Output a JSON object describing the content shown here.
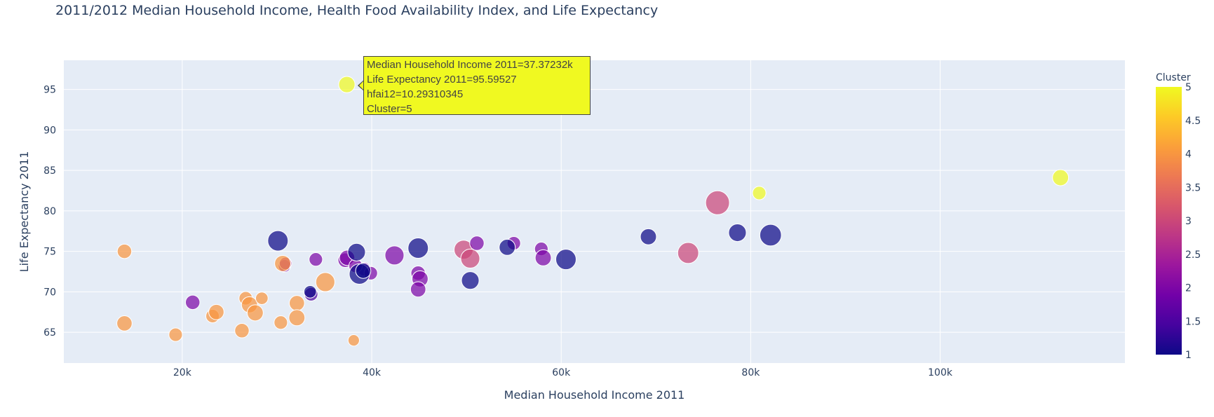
{
  "chart_data": {
    "type": "scatter",
    "title": "2011/2012 Median Household Income, Health Food Availability Index, and Life Expectancy",
    "xlabel": "Median Household Income 2011",
    "ylabel": "Life Expectancy 2011",
    "x_ticks": [
      {
        "value": 20000,
        "label": "20k"
      },
      {
        "value": 40000,
        "label": "40k"
      },
      {
        "value": 60000,
        "label": "60k"
      },
      {
        "value": 80000,
        "label": "80k"
      },
      {
        "value": 100000,
        "label": "100k"
      }
    ],
    "y_ticks": [
      {
        "value": 65,
        "label": "65"
      },
      {
        "value": 70,
        "label": "70"
      },
      {
        "value": 75,
        "label": "75"
      },
      {
        "value": 80,
        "label": "80"
      },
      {
        "value": 85,
        "label": "85"
      },
      {
        "value": 90,
        "label": "90"
      },
      {
        "value": 95,
        "label": "95"
      }
    ],
    "xlim": [
      7500,
      119500
    ],
    "ylim": [
      61.2,
      98.6
    ],
    "grid": true,
    "size_field": "hfai12",
    "color_field": "Cluster",
    "colorbar": {
      "title": "Cluster",
      "range": [
        1,
        5
      ],
      "ticks": [
        "1",
        "1.5",
        "2",
        "2.5",
        "3",
        "3.5",
        "4",
        "4.5",
        "5"
      ],
      "colors": [
        "#0d0887",
        "#46039f",
        "#7201a8",
        "#9c179e",
        "#bd3786",
        "#d8576b",
        "#ed7953",
        "#fb9f3a",
        "#fdca26",
        "#f0f921"
      ]
    },
    "points": [
      {
        "x": 37372,
        "y": 95.6,
        "size": 10.3,
        "cluster": 5
      },
      {
        "x": 112700,
        "y": 84.1,
        "size": 10.0,
        "cluster": 5
      },
      {
        "x": 80900,
        "y": 82.2,
        "size": 7.0,
        "cluster": 5
      },
      {
        "x": 76500,
        "y": 81.0,
        "size": 22.0,
        "cluster": 3
      },
      {
        "x": 73400,
        "y": 74.8,
        "size": 17.0,
        "cluster": 3
      },
      {
        "x": 49700,
        "y": 75.2,
        "size": 14.0,
        "cluster": 3
      },
      {
        "x": 50400,
        "y": 74.1,
        "size": 14.0,
        "cluster": 3
      },
      {
        "x": 51100,
        "y": 76.0,
        "size": 8.0,
        "cluster": 2
      },
      {
        "x": 55000,
        "y": 76.0,
        "size": 7.0,
        "cluster": 2
      },
      {
        "x": 57900,
        "y": 75.3,
        "size": 7.0,
        "cluster": 2
      },
      {
        "x": 58100,
        "y": 74.2,
        "size": 10.0,
        "cluster": 2
      },
      {
        "x": 42400,
        "y": 74.5,
        "size": 14.0,
        "cluster": 2
      },
      {
        "x": 44900,
        "y": 72.3,
        "size": 8.0,
        "cluster": 2
      },
      {
        "x": 45100,
        "y": 71.6,
        "size": 10.0,
        "cluster": 2
      },
      {
        "x": 44900,
        "y": 70.3,
        "size": 9.0,
        "cluster": 2
      },
      {
        "x": 34100,
        "y": 74.0,
        "size": 7.0,
        "cluster": 2
      },
      {
        "x": 37200,
        "y": 73.9,
        "size": 8.0,
        "cluster": 2
      },
      {
        "x": 37400,
        "y": 74.2,
        "size": 9.0,
        "cluster": 2
      },
      {
        "x": 39200,
        "y": 72.8,
        "size": 7.0,
        "cluster": 2
      },
      {
        "x": 39900,
        "y": 72.3,
        "size": 7.0,
        "cluster": 2
      },
      {
        "x": 38300,
        "y": 73.2,
        "size": 7.0,
        "cluster": 2
      },
      {
        "x": 30800,
        "y": 73.2,
        "size": 6.0,
        "cluster": 2
      },
      {
        "x": 30900,
        "y": 73.5,
        "size": 6.0,
        "cluster": 2.5
      },
      {
        "x": 21100,
        "y": 68.7,
        "size": 8.0,
        "cluster": 2
      },
      {
        "x": 33600,
        "y": 69.7,
        "size": 7.0,
        "cluster": 1.5
      },
      {
        "x": 33500,
        "y": 70.0,
        "size": 6.0,
        "cluster": 1
      },
      {
        "x": 30100,
        "y": 76.3,
        "size": 16.0,
        "cluster": 1
      },
      {
        "x": 38400,
        "y": 74.9,
        "size": 12.0,
        "cluster": 1
      },
      {
        "x": 38700,
        "y": 72.2,
        "size": 16.0,
        "cluster": 1
      },
      {
        "x": 39100,
        "y": 72.6,
        "size": 9.0,
        "cluster": 1
      },
      {
        "x": 44900,
        "y": 75.4,
        "size": 16.0,
        "cluster": 1
      },
      {
        "x": 50400,
        "y": 71.4,
        "size": 12.0,
        "cluster": 1
      },
      {
        "x": 54300,
        "y": 75.5,
        "size": 10.0,
        "cluster": 1
      },
      {
        "x": 60500,
        "y": 74.0,
        "size": 16.0,
        "cluster": 1
      },
      {
        "x": 69200,
        "y": 76.8,
        "size": 10.0,
        "cluster": 1
      },
      {
        "x": 78600,
        "y": 77.3,
        "size": 12.0,
        "cluster": 1
      },
      {
        "x": 82100,
        "y": 77.0,
        "size": 18.0,
        "cluster": 1
      },
      {
        "x": 13900,
        "y": 75.0,
        "size": 8.0,
        "cluster": 4
      },
      {
        "x": 13900,
        "y": 66.1,
        "size": 9.0,
        "cluster": 4
      },
      {
        "x": 19300,
        "y": 64.7,
        "size": 7.0,
        "cluster": 4
      },
      {
        "x": 23200,
        "y": 67.0,
        "size": 7.0,
        "cluster": 4
      },
      {
        "x": 23600,
        "y": 67.5,
        "size": 9.0,
        "cluster": 4
      },
      {
        "x": 26300,
        "y": 65.2,
        "size": 8.0,
        "cluster": 4
      },
      {
        "x": 26700,
        "y": 69.2,
        "size": 7.0,
        "cluster": 4
      },
      {
        "x": 27100,
        "y": 68.4,
        "size": 10.0,
        "cluster": 4
      },
      {
        "x": 27700,
        "y": 67.4,
        "size": 10.0,
        "cluster": 4
      },
      {
        "x": 28400,
        "y": 69.2,
        "size": 6.0,
        "cluster": 4
      },
      {
        "x": 30400,
        "y": 66.2,
        "size": 7.0,
        "cluster": 4
      },
      {
        "x": 30600,
        "y": 73.5,
        "size": 10.0,
        "cluster": 4
      },
      {
        "x": 32100,
        "y": 68.6,
        "size": 9.0,
        "cluster": 4
      },
      {
        "x": 32100,
        "y": 66.8,
        "size": 10.0,
        "cluster": 4
      },
      {
        "x": 35100,
        "y": 71.2,
        "size": 14.0,
        "cluster": 4
      },
      {
        "x": 38100,
        "y": 64.0,
        "size": 5.0,
        "cluster": 4
      }
    ],
    "hover": {
      "lines": [
        "Median Household Income 2011=37.37232k",
        "Life Expectancy 2011=95.59527",
        "hfai12=10.29310345",
        "Cluster=5"
      ]
    }
  }
}
